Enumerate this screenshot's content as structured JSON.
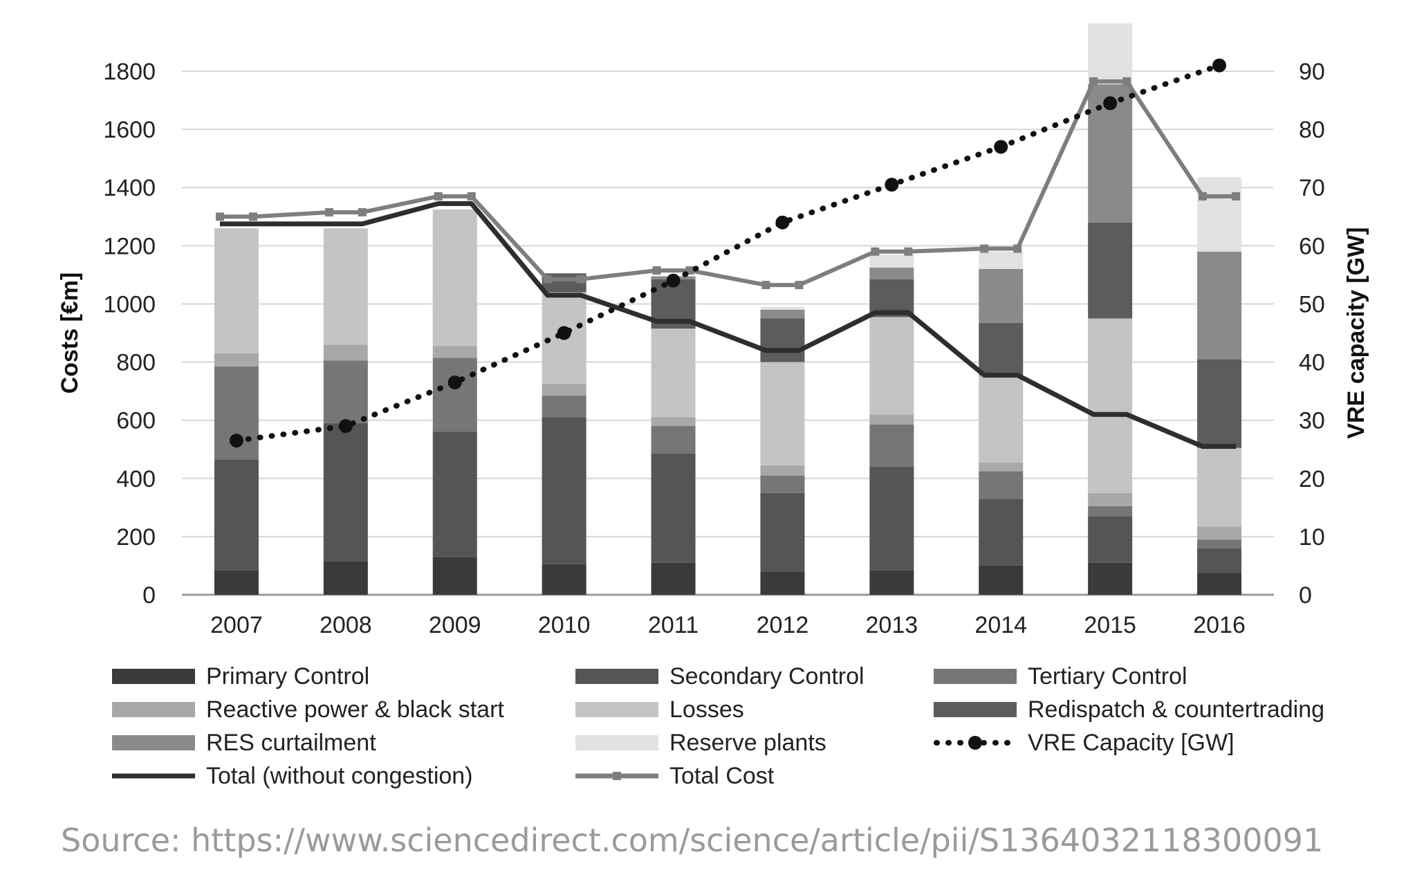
{
  "chart_data": {
    "type": "bar",
    "stacked": true,
    "categories": [
      "2007",
      "2008",
      "2009",
      "2010",
      "2011",
      "2012",
      "2013",
      "2014",
      "2015",
      "2016"
    ],
    "y_left": {
      "label": "Costs [€m]",
      "ylim": [
        0,
        1800
      ],
      "ticks": [
        0,
        200,
        400,
        600,
        800,
        1000,
        1200,
        1400,
        1600,
        1800
      ]
    },
    "y_right": {
      "label": "VRE capacity [GW]",
      "ylim": [
        0,
        90
      ],
      "ticks": [
        0,
        10,
        20,
        30,
        40,
        50,
        60,
        70,
        80,
        90
      ]
    },
    "grid": true,
    "series": [
      {
        "name": "Primary Control",
        "kind": "bar",
        "color": "#3a3a3a",
        "values": [
          85,
          115,
          130,
          105,
          110,
          80,
          85,
          100,
          110,
          75
        ]
      },
      {
        "name": "Secondary Control",
        "kind": "bar",
        "color": "#555555",
        "values": [
          380,
          475,
          430,
          505,
          375,
          270,
          355,
          230,
          160,
          85
        ]
      },
      {
        "name": "Tertiary Control",
        "kind": "bar",
        "color": "#767676",
        "values": [
          320,
          215,
          255,
          75,
          95,
          60,
          145,
          95,
          35,
          30
        ]
      },
      {
        "name": "Reactive power & black start",
        "kind": "bar",
        "color": "#a8a8a8",
        "values": [
          45,
          55,
          40,
          40,
          30,
          35,
          35,
          30,
          45,
          45
        ]
      },
      {
        "name": "Losses",
        "kind": "bar",
        "color": "#c4c4c4",
        "values": [
          430,
          400,
          470,
          315,
          305,
          355,
          335,
          300,
          600,
          270
        ]
      },
      {
        "name": "Redispatch & countertrading",
        "kind": "bar",
        "color": "#5c5c5c",
        "values": [
          0,
          0,
          0,
          65,
          170,
          150,
          130,
          180,
          330,
          305
        ]
      },
      {
        "name": "RES curtailment",
        "kind": "bar",
        "color": "#8a8a8a",
        "values": [
          0,
          0,
          0,
          0,
          10,
          30,
          40,
          185,
          475,
          370
        ]
      },
      {
        "name": "Reserve plants",
        "kind": "bar",
        "color": "#e2e2e2",
        "values": [
          0,
          0,
          0,
          0,
          0,
          10,
          45,
          60,
          210,
          255
        ]
      },
      {
        "name": "VRE Capacity [GW]",
        "kind": "dotted-line",
        "axis": "right",
        "color": "#111111",
        "values": [
          26.5,
          29,
          36.5,
          45,
          54,
          64,
          70.5,
          77,
          84.5,
          91
        ]
      },
      {
        "name": "Total (without congestion)",
        "kind": "line",
        "color": "#2e2e2e",
        "values": [
          1275,
          1275,
          1345,
          1030,
          940,
          840,
          970,
          755,
          620,
          510
        ]
      },
      {
        "name": "Total Cost",
        "kind": "line",
        "color": "#7e7e7e",
        "values": [
          1300,
          1315,
          1370,
          1085,
          1115,
          1065,
          1180,
          1190,
          1765,
          1370
        ]
      }
    ],
    "legend": [
      "Primary Control",
      "Secondary Control",
      "Tertiary Control",
      "Reactive power & black start",
      "Losses",
      "Redispatch & countertrading",
      "RES curtailment",
      "Reserve plants",
      "VRE Capacity [GW]",
      "Total (without congestion)",
      "Total Cost"
    ],
    "legend_position": "bottom"
  },
  "source": "Source: https://www.sciencedirect.com/science/article/pii/S1364032118300091"
}
